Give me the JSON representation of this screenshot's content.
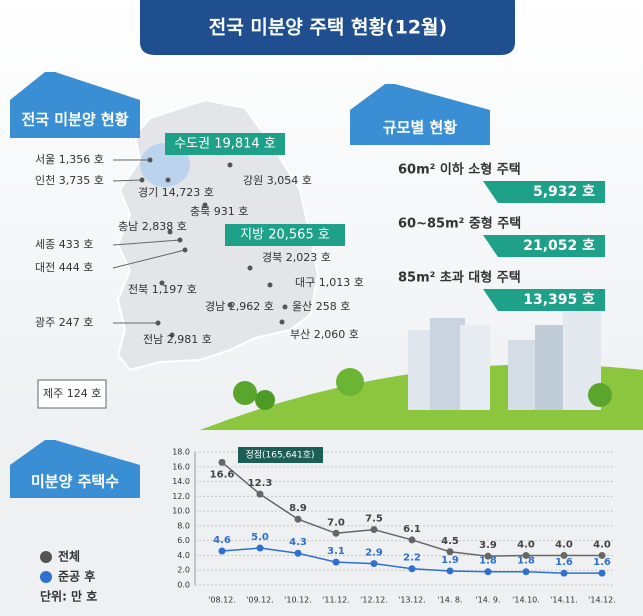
{
  "header": {
    "title": "전국 미분양 주택 현황(12월)"
  },
  "map": {
    "heading": "전국 미분양 현황",
    "capital_total": "수도권 19,814 호",
    "local_total": "지방 20,565 호",
    "regions": [
      "서울 1,356 호",
      "인천 3,735 호",
      "경기 14,723 호",
      "강원 3,054 호",
      "충북 931 호",
      "충남 2,838 호",
      "세종 433 호",
      "대전 444 호",
      "경북 2,023 호",
      "대구 1,013 호",
      "전북 1,197 호",
      "경남 2,962 호",
      "울산 258 호",
      "광주 247 호",
      "부산 2,060 호",
      "전남 2,981 호",
      "제주 124 호"
    ]
  },
  "sizes": {
    "heading": "규모별 현황",
    "items": [
      {
        "label": "60m² 이하 소형 주택",
        "value": "5,932 호"
      },
      {
        "label": "60~85m²  중형 주택",
        "value": "21,052 호"
      },
      {
        "label": "85m² 초과 대형 주택",
        "value": "13,395 호"
      }
    ]
  },
  "trend": {
    "heading": "미분양  주택수",
    "unit": "단위: 만 호"
  },
  "chart_data": {
    "type": "line",
    "x": [
      "'08.12.",
      "'09.12.",
      "'10.12.",
      "'11.12.",
      "'12.12.",
      "'13.12.",
      "'14. 8.",
      "'14. 9.",
      "'14.10.",
      "'14.11.",
      "'14.12."
    ],
    "series": [
      {
        "name": "전체",
        "color": "#666666",
        "values": [
          16.6,
          12.3,
          8.9,
          7.0,
          7.5,
          6.1,
          4.5,
          3.9,
          4.0,
          4.0,
          4.0
        ],
        "value_labels": [
          "16.6",
          "12.3",
          "8.9",
          "7.0",
          "7.5",
          "6.1",
          "4.5",
          "3.9",
          "4.0",
          "4.0",
          "4.0"
        ]
      },
      {
        "name": "준공 후",
        "color": "#2f6fd0",
        "values": [
          4.6,
          5.0,
          4.3,
          3.1,
          2.9,
          2.2,
          1.9,
          1.8,
          1.8,
          1.6,
          1.6
        ],
        "value_labels": [
          "4.6",
          "5.0",
          "4.3",
          "3.1",
          "2.9",
          "2.2",
          "1.9",
          "1.8",
          "1.8",
          "1.6",
          "1.6"
        ]
      }
    ],
    "annotation": "정점(165,641호)",
    "ylim": [
      0,
      18
    ],
    "yticks": [
      {
        "value": 0,
        "label": "0.0"
      },
      {
        "value": 2,
        "label": "2.0"
      },
      {
        "value": 4,
        "label": "4.0"
      },
      {
        "value": 6,
        "label": "6.0"
      },
      {
        "value": 8,
        "label": "8.0"
      },
      {
        "value": 10,
        "label": "10.0"
      },
      {
        "value": 12,
        "label": "12.0"
      },
      {
        "value": 14,
        "label": "14.0"
      },
      {
        "value": 16,
        "label": "16.0"
      },
      {
        "value": 18,
        "label": "18.0"
      }
    ],
    "grid": true
  }
}
